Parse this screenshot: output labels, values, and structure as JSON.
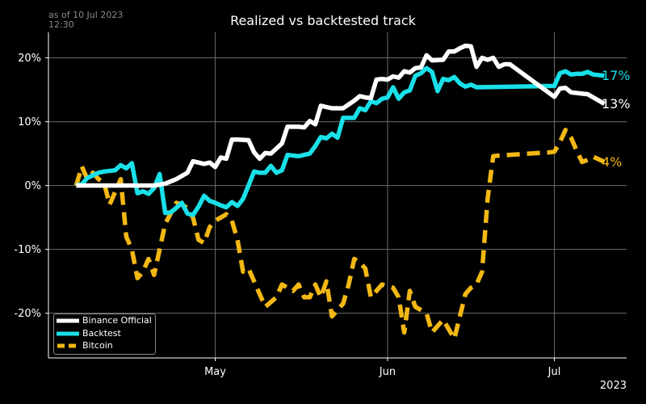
{
  "header": {
    "as_of_line1": "as of 10 Jul 2023",
    "as_of_line2": "12:30"
  },
  "chart_data": {
    "type": "line",
    "title": "Realized vs backtested track",
    "xlabel": "",
    "ylabel": "",
    "year_label": "2023",
    "x_tick_labels": [
      "May",
      "Jun",
      "Jul"
    ],
    "y_tick_labels": [
      "20%",
      "10%",
      "0%",
      "-10%",
      "-20%"
    ],
    "ylim": [
      -27,
      24
    ],
    "grid": true,
    "legend_position": "bottom-left",
    "colors": {
      "background": "#000000",
      "grid": "#6b6b6b",
      "axis": "#ffffff"
    },
    "series": [
      {
        "name": "Binance Official",
        "color": "#ffffff",
        "style": "solid",
        "end_label": "13%",
        "points": [
          [
            "2023-04-06",
            0.0
          ],
          [
            "2023-04-14",
            0.0
          ],
          [
            "2023-04-20",
            0.0
          ],
          [
            "2023-04-22",
            0.3
          ],
          [
            "2023-04-24",
            1.0
          ],
          [
            "2023-04-26",
            2.0
          ],
          [
            "2023-04-27",
            3.8
          ],
          [
            "2023-04-28",
            3.6
          ],
          [
            "2023-04-29",
            3.4
          ],
          [
            "2023-04-30",
            3.6
          ],
          [
            "2023-05-01",
            2.9
          ],
          [
            "2023-05-02",
            4.4
          ],
          [
            "2023-05-03",
            4.2
          ],
          [
            "2023-05-04",
            7.2
          ],
          [
            "2023-05-05",
            7.2
          ],
          [
            "2023-05-07",
            7.1
          ],
          [
            "2023-05-08",
            5.2
          ],
          [
            "2023-05-09",
            4.2
          ],
          [
            "2023-05-10",
            5.1
          ],
          [
            "2023-05-11",
            5.0
          ],
          [
            "2023-05-13",
            6.6
          ],
          [
            "2023-05-14",
            9.2
          ],
          [
            "2023-05-16",
            9.2
          ],
          [
            "2023-05-17",
            9.1
          ],
          [
            "2023-05-18",
            10.1
          ],
          [
            "2023-05-19",
            9.6
          ],
          [
            "2023-05-20",
            12.5
          ],
          [
            "2023-05-22",
            12.1
          ],
          [
            "2023-05-24",
            12.1
          ],
          [
            "2023-05-26",
            13.3
          ],
          [
            "2023-05-27",
            14.0
          ],
          [
            "2023-05-28",
            13.8
          ],
          [
            "2023-05-29",
            13.7
          ],
          [
            "2023-05-30",
            16.6
          ],
          [
            "2023-05-31",
            16.7
          ],
          [
            "2023-06-01",
            16.6
          ],
          [
            "2023-06-02",
            17.1
          ],
          [
            "2023-06-03",
            16.9
          ],
          [
            "2023-06-04",
            17.9
          ],
          [
            "2023-06-05",
            17.7
          ],
          [
            "2023-06-06",
            18.4
          ],
          [
            "2023-06-07",
            18.5
          ],
          [
            "2023-06-08",
            20.4
          ],
          [
            "2023-06-09",
            19.6
          ],
          [
            "2023-06-11",
            19.7
          ],
          [
            "2023-06-12",
            21.0
          ],
          [
            "2023-06-13",
            21.0
          ],
          [
            "2023-06-14",
            21.5
          ],
          [
            "2023-06-15",
            21.9
          ],
          [
            "2023-06-16",
            21.8
          ],
          [
            "2023-06-17",
            18.6
          ],
          [
            "2023-06-18",
            20.0
          ],
          [
            "2023-06-19",
            19.7
          ],
          [
            "2023-06-20",
            20.0
          ],
          [
            "2023-06-21",
            18.6
          ],
          [
            "2023-06-22",
            19.0
          ],
          [
            "2023-06-23",
            19.0
          ],
          [
            "2023-07-01",
            13.9
          ],
          [
            "2023-07-02",
            15.2
          ],
          [
            "2023-07-03",
            15.3
          ],
          [
            "2023-07-04",
            14.6
          ],
          [
            "2023-07-06",
            14.4
          ],
          [
            "2023-07-07",
            14.3
          ],
          [
            "2023-07-10",
            12.8
          ]
        ]
      },
      {
        "name": "Backtest",
        "color": "#19e0e8",
        "style": "solid",
        "end_label": "17%",
        "points": [
          [
            "2023-04-06",
            0.0
          ],
          [
            "2023-04-07",
            0.2
          ],
          [
            "2023-04-08",
            1.2
          ],
          [
            "2023-04-10",
            2.0
          ],
          [
            "2023-04-11",
            2.2
          ],
          [
            "2023-04-13",
            2.4
          ],
          [
            "2023-04-14",
            3.2
          ],
          [
            "2023-04-15",
            2.7
          ],
          [
            "2023-04-16",
            3.5
          ],
          [
            "2023-04-17",
            -1.2
          ],
          [
            "2023-04-18",
            -0.9
          ],
          [
            "2023-04-19",
            -1.3
          ],
          [
            "2023-04-20",
            -0.4
          ],
          [
            "2023-04-21",
            1.8
          ],
          [
            "2023-04-22",
            -4.3
          ],
          [
            "2023-04-23",
            -4.2
          ],
          [
            "2023-04-24",
            -3.5
          ],
          [
            "2023-04-25",
            -2.7
          ],
          [
            "2023-04-26",
            -4.4
          ],
          [
            "2023-04-27",
            -4.6
          ],
          [
            "2023-04-28",
            -3.3
          ],
          [
            "2023-04-29",
            -1.6
          ],
          [
            "2023-04-30",
            -2.4
          ],
          [
            "2023-05-01",
            -2.7
          ],
          [
            "2023-05-02",
            -3.1
          ],
          [
            "2023-05-03",
            -3.4
          ],
          [
            "2023-05-04",
            -2.6
          ],
          [
            "2023-05-05",
            -3.2
          ],
          [
            "2023-05-06",
            -2.1
          ],
          [
            "2023-05-07",
            0.0
          ],
          [
            "2023-05-08",
            2.2
          ],
          [
            "2023-05-09",
            2.0
          ],
          [
            "2023-05-10",
            2.0
          ],
          [
            "2023-05-11",
            3.1
          ],
          [
            "2023-05-12",
            2.0
          ],
          [
            "2023-05-13",
            2.4
          ],
          [
            "2023-05-14",
            4.8
          ],
          [
            "2023-05-16",
            4.6
          ],
          [
            "2023-05-17",
            4.8
          ],
          [
            "2023-05-18",
            5.0
          ],
          [
            "2023-05-19",
            6.2
          ],
          [
            "2023-05-20",
            7.6
          ],
          [
            "2023-05-21",
            7.4
          ],
          [
            "2023-05-22",
            8.1
          ],
          [
            "2023-05-23",
            7.5
          ],
          [
            "2023-05-24",
            10.6
          ],
          [
            "2023-05-26",
            10.6
          ],
          [
            "2023-05-27",
            12.1
          ],
          [
            "2023-05-28",
            11.8
          ],
          [
            "2023-05-29",
            13.2
          ],
          [
            "2023-05-30",
            12.9
          ],
          [
            "2023-05-31",
            13.6
          ],
          [
            "2023-06-01",
            13.8
          ],
          [
            "2023-06-02",
            15.4
          ],
          [
            "2023-06-03",
            13.6
          ],
          [
            "2023-06-04",
            14.6
          ],
          [
            "2023-06-05",
            14.9
          ],
          [
            "2023-06-06",
            17.2
          ],
          [
            "2023-06-07",
            17.6
          ],
          [
            "2023-06-08",
            18.4
          ],
          [
            "2023-06-09",
            17.8
          ],
          [
            "2023-06-10",
            14.8
          ],
          [
            "2023-06-11",
            16.7
          ],
          [
            "2023-06-12",
            16.5
          ],
          [
            "2023-06-13",
            17.0
          ],
          [
            "2023-06-14",
            16.0
          ],
          [
            "2023-06-15",
            15.5
          ],
          [
            "2023-06-16",
            15.8
          ],
          [
            "2023-06-17",
            15.4
          ],
          [
            "2023-07-01",
            15.6
          ],
          [
            "2023-07-02",
            17.6
          ],
          [
            "2023-07-03",
            17.9
          ],
          [
            "2023-07-04",
            17.4
          ],
          [
            "2023-07-05",
            17.5
          ],
          [
            "2023-07-06",
            17.5
          ],
          [
            "2023-07-07",
            17.8
          ],
          [
            "2023-07-08",
            17.4
          ],
          [
            "2023-07-10",
            17.2
          ]
        ]
      },
      {
        "name": "Bitcoin",
        "color": "#f4b814",
        "style": "dashed",
        "end_label": "4%",
        "points": [
          [
            "2023-04-06",
            0.0
          ],
          [
            "2023-04-07",
            3.0
          ],
          [
            "2023-04-08",
            1.0
          ],
          [
            "2023-04-09",
            2.0
          ],
          [
            "2023-04-10",
            1.0
          ],
          [
            "2023-04-11",
            0.5
          ],
          [
            "2023-04-12",
            -3.0
          ],
          [
            "2023-04-13",
            -1.0
          ],
          [
            "2023-04-14",
            1.0
          ],
          [
            "2023-04-15",
            -8.0
          ],
          [
            "2023-04-16",
            -10.0
          ],
          [
            "2023-04-17",
            -14.5
          ],
          [
            "2023-04-18",
            -13.5
          ],
          [
            "2023-04-19",
            -11.5
          ],
          [
            "2023-04-20",
            -14.0
          ],
          [
            "2023-04-22",
            -6.0
          ],
          [
            "2023-04-24",
            -2.7
          ],
          [
            "2023-04-25",
            -3.0
          ],
          [
            "2023-04-26",
            -3.5
          ],
          [
            "2023-04-27",
            -5.0
          ],
          [
            "2023-04-28",
            -8.5
          ],
          [
            "2023-04-29",
            -9.0
          ],
          [
            "2023-04-30",
            -6.5
          ],
          [
            "2023-05-01",
            -5.5
          ],
          [
            "2023-05-02",
            -5.0
          ],
          [
            "2023-05-03",
            -4.5
          ],
          [
            "2023-05-04",
            -5.5
          ],
          [
            "2023-05-05",
            -8.5
          ],
          [
            "2023-05-06",
            -13.5
          ],
          [
            "2023-05-07",
            -13.0
          ],
          [
            "2023-05-10",
            -19.0
          ],
          [
            "2023-05-12",
            -17.5
          ],
          [
            "2023-05-13",
            -15.5
          ],
          [
            "2023-05-15",
            -16.5
          ],
          [
            "2023-05-16",
            -15.5
          ],
          [
            "2023-05-17",
            -17.5
          ],
          [
            "2023-05-18",
            -17.5
          ],
          [
            "2023-05-19",
            -15.5
          ],
          [
            "2023-05-20",
            -17.5
          ],
          [
            "2023-05-21",
            -15.0
          ],
          [
            "2023-05-22",
            -20.5
          ],
          [
            "2023-05-24",
            -18.5
          ],
          [
            "2023-05-25",
            -15.5
          ],
          [
            "2023-05-26",
            -11.5
          ],
          [
            "2023-05-27",
            -12.0
          ],
          [
            "2023-05-28",
            -13.0
          ],
          [
            "2023-05-29",
            -17.5
          ],
          [
            "2023-05-31",
            -15.5
          ],
          [
            "2023-06-02",
            -16.0
          ],
          [
            "2023-06-03",
            -17.5
          ],
          [
            "2023-06-04",
            -23.0
          ],
          [
            "2023-06-05",
            -16.5
          ],
          [
            "2023-06-06",
            -19.0
          ],
          [
            "2023-06-08",
            -20.0
          ],
          [
            "2023-06-09",
            -23.0
          ],
          [
            "2023-06-10",
            -22.0
          ],
          [
            "2023-06-11",
            -21.0
          ],
          [
            "2023-06-12",
            -22.5
          ],
          [
            "2023-06-13",
            -24.0
          ],
          [
            "2023-06-14",
            -20.5
          ],
          [
            "2023-06-15",
            -17.0
          ],
          [
            "2023-06-16",
            -16.0
          ],
          [
            "2023-06-17",
            -15.5
          ],
          [
            "2023-06-18",
            -13.5
          ],
          [
            "2023-06-19",
            -2.0
          ],
          [
            "2023-06-20",
            4.6
          ],
          [
            "2023-06-21",
            4.7
          ],
          [
            "2023-06-30",
            5.2
          ],
          [
            "2023-07-01",
            5.3
          ],
          [
            "2023-07-02",
            6.8
          ],
          [
            "2023-07-03",
            8.7
          ],
          [
            "2023-07-04",
            7.5
          ],
          [
            "2023-07-05",
            5.5
          ],
          [
            "2023-07-06",
            3.7
          ],
          [
            "2023-07-07",
            4.0
          ],
          [
            "2023-07-08",
            4.5
          ],
          [
            "2023-07-10",
            3.7
          ]
        ]
      }
    ]
  }
}
